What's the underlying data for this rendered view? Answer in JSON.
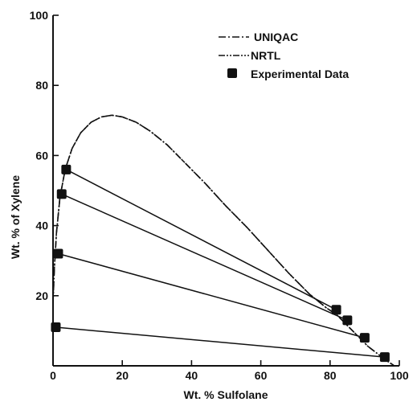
{
  "chart_data": {
    "type": "scatter",
    "xlabel": "Wt. % Sulfolane",
    "ylabel": "Wt. % of Xylene",
    "xlim": [
      0,
      100
    ],
    "ylim": [
      0,
      100
    ],
    "xticks": [
      0,
      20,
      40,
      60,
      80,
      100
    ],
    "yticks": [
      20,
      40,
      60,
      80,
      100
    ],
    "grid": false,
    "legend_position": "top-right",
    "legend": {
      "uniqac": "UNIQAC",
      "nrtl": "NRTL",
      "experimental": "Experimental Data"
    },
    "series": [
      {
        "name": "UNIQAC",
        "style": "dash-dot",
        "x": [
          0.0,
          0.4,
          1.0,
          2.0,
          3.5,
          5.5,
          8.0,
          11.0,
          14.0,
          17.0,
          20.0,
          24.0,
          28.0,
          33.0,
          38.0,
          44.0,
          50.0,
          56.0,
          62.0,
          68.0,
          74.0,
          79.0,
          82.0,
          85.0,
          88.0,
          91.0,
          93.0,
          95.0,
          96.0,
          97.0,
          98.0,
          98.5
        ],
        "y": [
          18.0,
          28.0,
          38.0,
          48.0,
          56.0,
          62.0,
          66.5,
          69.5,
          71.0,
          71.5,
          71.0,
          69.5,
          67.0,
          63.0,
          58.0,
          52.0,
          45.5,
          39.5,
          33.0,
          26.5,
          20.5,
          16.5,
          14.5,
          11.5,
          8.5,
          5.5,
          4.0,
          2.5,
          1.8,
          1.0,
          0.4,
          0.0
        ]
      },
      {
        "name": "NRTL",
        "style": "dash-dot-dot",
        "x": [
          0.0,
          0.4,
          1.0,
          2.0,
          3.5,
          5.5,
          8.0,
          11.0,
          14.0,
          17.0,
          20.0,
          24.0,
          28.0,
          33.0,
          38.0,
          44.0,
          50.0,
          56.0,
          62.0,
          68.0,
          74.0,
          79.0,
          82.0,
          85.0,
          88.0,
          91.0,
          93.0,
          95.0,
          96.0,
          97.0,
          98.0,
          98.5
        ],
        "y": [
          18.0,
          28.0,
          38.0,
          48.0,
          56.0,
          62.0,
          66.5,
          69.5,
          71.0,
          71.5,
          71.0,
          69.5,
          67.0,
          63.0,
          58.0,
          52.0,
          45.5,
          39.5,
          33.0,
          26.5,
          20.5,
          16.5,
          14.5,
          11.5,
          8.5,
          5.5,
          4.0,
          2.5,
          1.8,
          1.0,
          0.4,
          0.0
        ]
      }
    ],
    "experimental_points": [
      {
        "x": 0.8,
        "y": 11.0
      },
      {
        "x": 1.5,
        "y": 32.0
      },
      {
        "x": 2.5,
        "y": 49.0
      },
      {
        "x": 3.8,
        "y": 56.0
      },
      {
        "x": 81.8,
        "y": 16.0
      },
      {
        "x": 85.0,
        "y": 13.0
      },
      {
        "x": 90.0,
        "y": 8.0
      },
      {
        "x": 95.8,
        "y": 2.5
      }
    ],
    "tie_lines": [
      {
        "x1": 0.8,
        "y1": 11.0,
        "x2": 95.8,
        "y2": 2.5
      },
      {
        "x1": 1.5,
        "y1": 32.0,
        "x2": 90.0,
        "y2": 8.0
      },
      {
        "x1": 2.5,
        "y1": 49.0,
        "x2": 85.0,
        "y2": 13.0
      },
      {
        "x1": 3.8,
        "y1": 56.0,
        "x2": 81.8,
        "y2": 16.0
      }
    ]
  }
}
